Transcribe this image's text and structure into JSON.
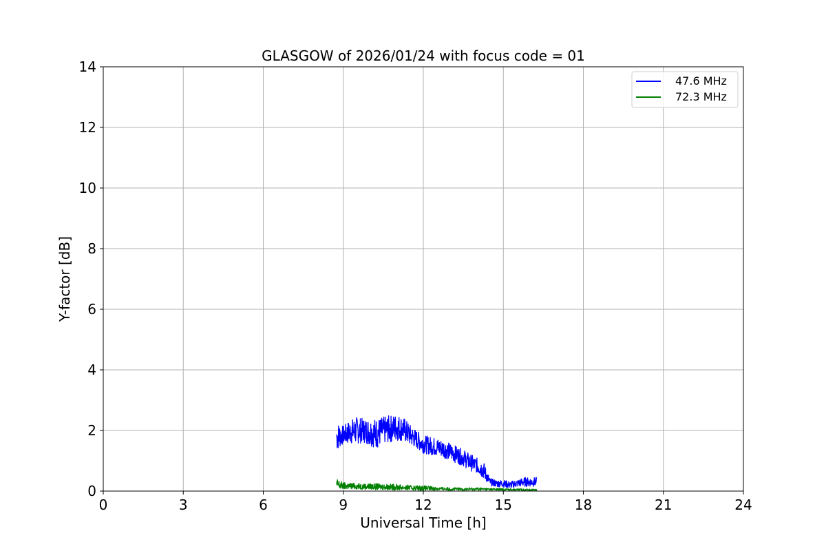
{
  "chart_data": {
    "type": "line",
    "title": "GLASGOW of 2026/01/24 with focus code = 01",
    "xlabel": "Universal Time [h]",
    "ylabel": "Y-factor [dB]",
    "xlim": [
      0,
      24
    ],
    "ylim": [
      0,
      14
    ],
    "xticks": [
      "0",
      "3",
      "6",
      "9",
      "12",
      "15",
      "18",
      "21",
      "24"
    ],
    "yticks": [
      "0",
      "2",
      "4",
      "6",
      "8",
      "10",
      "12",
      "14"
    ],
    "grid": true,
    "legend_position": "top-right",
    "series": [
      {
        "name": "47.6 MHz",
        "color": "#0000ff",
        "x": [
          8.75,
          9.0,
          9.25,
          9.5,
          9.75,
          10.0,
          10.25,
          10.5,
          10.75,
          11.0,
          11.25,
          11.5,
          11.75,
          12.0,
          12.25,
          12.5,
          12.75,
          13.0,
          13.25,
          13.5,
          13.75,
          14.0,
          14.25,
          14.5,
          14.75,
          15.0,
          15.25,
          15.5,
          15.75,
          16.0,
          16.25
        ],
        "values": [
          1.8,
          1.85,
          1.95,
          2.0,
          2.0,
          1.95,
          1.9,
          2.0,
          2.05,
          2.1,
          2.05,
          1.85,
          1.7,
          1.55,
          1.5,
          1.45,
          1.4,
          1.3,
          1.2,
          1.1,
          0.95,
          0.85,
          0.7,
          0.3,
          0.25,
          0.25,
          0.2,
          0.25,
          0.3,
          0.3,
          0.3
        ],
        "spread": [
          0.5,
          0.3,
          0.4,
          0.45,
          0.4,
          0.45,
          0.5,
          0.45,
          0.45,
          0.45,
          0.4,
          0.35,
          0.3,
          0.3,
          0.3,
          0.3,
          0.3,
          0.28,
          0.28,
          0.28,
          0.28,
          0.25,
          0.3,
          0.12,
          0.12,
          0.12,
          0.12,
          0.12,
          0.15,
          0.15,
          0.15
        ]
      },
      {
        "name": "72.3 MHz",
        "color": "#008000",
        "x": [
          8.75,
          9.0,
          9.5,
          10.0,
          10.5,
          11.0,
          11.5,
          12.0,
          12.5,
          13.0,
          13.5,
          14.0,
          14.5,
          15.0,
          15.5,
          16.0,
          16.25
        ],
        "values": [
          0.22,
          0.17,
          0.16,
          0.15,
          0.14,
          0.13,
          0.11,
          0.1,
          0.08,
          0.07,
          0.06,
          0.07,
          0.06,
          0.05,
          0.05,
          0.04,
          0.04
        ],
        "spread": [
          0.2,
          0.12,
          0.1,
          0.1,
          0.1,
          0.1,
          0.08,
          0.08,
          0.06,
          0.05,
          0.05,
          0.05,
          0.04,
          0.04,
          0.03,
          0.03,
          0.03
        ]
      }
    ]
  }
}
